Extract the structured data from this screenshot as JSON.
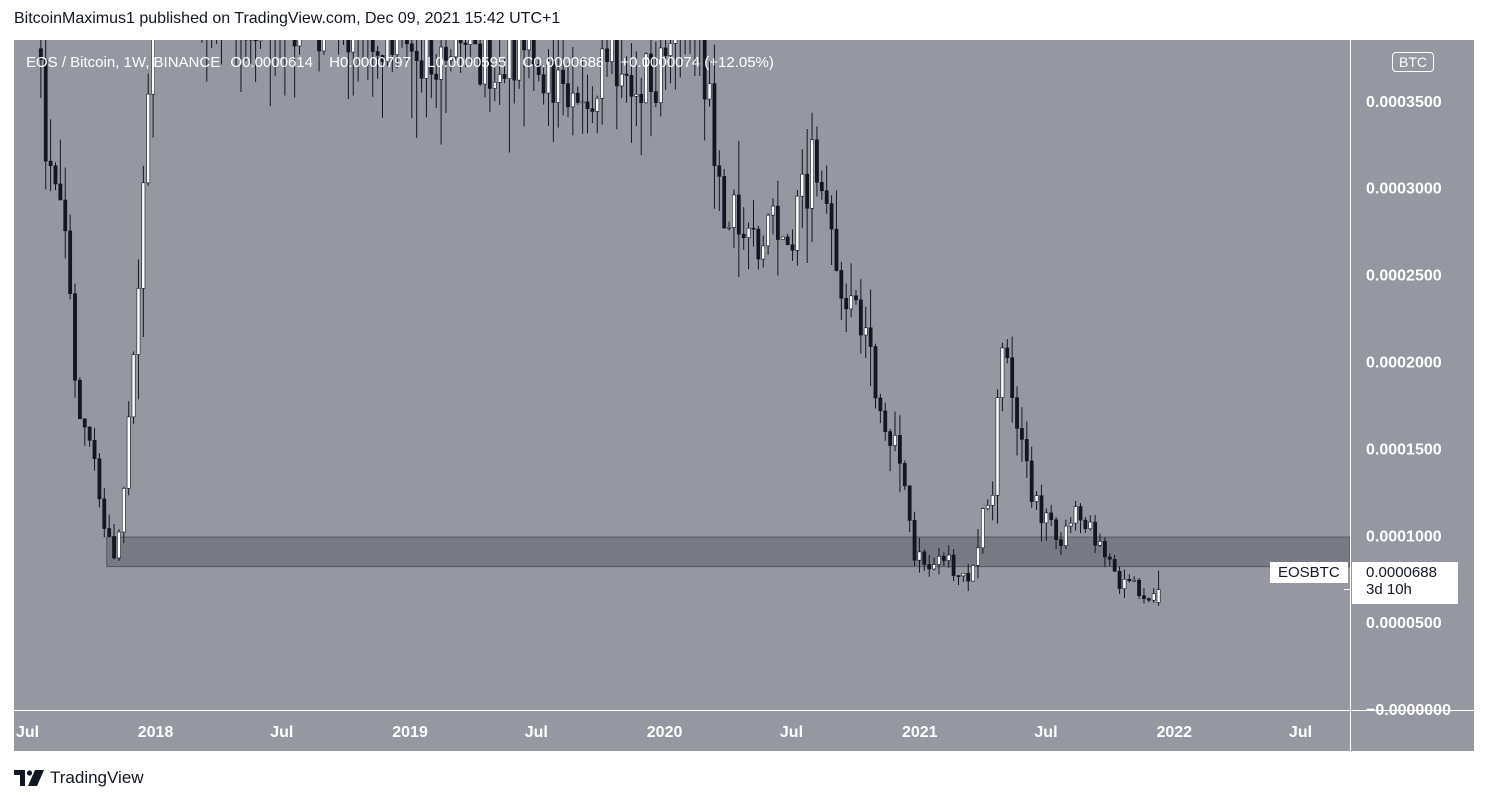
{
  "header": {
    "publisher_line": "BitcoinMaximus1 published on TradingView.com, Dec 09, 2021 15:42 UTC+1"
  },
  "legend": {
    "symbol": "EOS / Bitcoin, 1W, BINANCE",
    "o_label": "O",
    "o_value": "0.0000614",
    "h_label": "H",
    "h_value": "0.0000797",
    "l_label": "L",
    "l_value": "0.0000595",
    "c_label": "C",
    "c_value": "0.0000688",
    "change": "+0.0000074 (+12.05%)"
  },
  "currency_badge": "BTC",
  "last_price": {
    "ticker": "EOSBTC",
    "value": "0.0000688",
    "countdown": "3d 10h"
  },
  "footer": {
    "brand": "TradingView"
  },
  "colors": {
    "background": "#9598a1",
    "candle_up": "#ffffff",
    "candle_down": "#131722",
    "support_zone": "#6f727a",
    "text": "#ffffff"
  },
  "chart_data": {
    "type": "candlestick",
    "title": "EOS / Bitcoin, 1W, BINANCE",
    "xlabel": "",
    "ylabel": "",
    "ylim": [
      -5e-07,
      0.000385
    ],
    "x_tick_labels": [
      "Jul",
      "2018",
      "Jul",
      "2019",
      "Jul",
      "2020",
      "Jul",
      "2021",
      "Jul",
      "2022",
      "Jul"
    ],
    "x_tick_dates": [
      "2017-07-01",
      "2018-01-01",
      "2018-07-01",
      "2019-01-01",
      "2019-07-01",
      "2020-01-01",
      "2020-07-01",
      "2021-01-01",
      "2021-07-01",
      "2022-01-01",
      "2022-07-01"
    ],
    "y_tick_labels": [
      "0.0003500",
      "0.0003000",
      "0.0002500",
      "0.0002000",
      "0.0001500",
      "0.0001000",
      "0.0000500",
      "−0.0000000"
    ],
    "y_tick_values": [
      0.00035,
      0.0003,
      0.00025,
      0.0002,
      0.00015,
      0.0001,
      5e-05,
      0
    ],
    "support_zone": {
      "from": 8.2e-05,
      "to": 9.9e-05,
      "start": "2017-10-23"
    },
    "grid": false,
    "legend_position": "top-left",
    "series": [
      {
        "name": "EOSBTC",
        "keypoints": [
          {
            "date": "2017-07-24",
            "close": 0.00038
          },
          {
            "date": "2017-07-31",
            "close": 0.000335
          },
          {
            "date": "2017-08-14",
            "close": 0.00031
          },
          {
            "date": "2017-08-28",
            "close": 0.00027
          },
          {
            "date": "2017-09-11",
            "close": 0.000185
          },
          {
            "date": "2017-09-25",
            "close": 0.000165
          },
          {
            "date": "2017-10-09",
            "close": 0.000145
          },
          {
            "date": "2017-10-23",
            "close": 0.00011
          },
          {
            "date": "2017-11-06",
            "close": 9e-05
          },
          {
            "date": "2017-11-20",
            "close": 0.000125
          },
          {
            "date": "2017-12-04",
            "close": 0.00021
          },
          {
            "date": "2017-12-18",
            "close": 0.0003
          },
          {
            "date": "2018-01-01",
            "close": 0.00042
          },
          {
            "date": "2019-07-22",
            "close": 0.00037
          },
          {
            "date": "2019-09-02",
            "close": 0.00034
          },
          {
            "date": "2019-10-14",
            "close": 0.000385
          },
          {
            "date": "2019-11-25",
            "close": 0.000345
          },
          {
            "date": "2020-01-06",
            "close": 0.00038
          },
          {
            "date": "2020-02-17",
            "close": 0.000385
          },
          {
            "date": "2020-03-09",
            "close": 0.000345
          },
          {
            "date": "2020-03-23",
            "close": 0.00029
          },
          {
            "date": "2020-04-13",
            "close": 0.00028
          },
          {
            "date": "2020-05-04",
            "close": 0.000285
          },
          {
            "date": "2020-05-25",
            "close": 0.000265
          },
          {
            "date": "2020-06-15",
            "close": 0.000285
          },
          {
            "date": "2020-07-06",
            "close": 0.00027
          },
          {
            "date": "2020-08-03",
            "close": 0.000315
          },
          {
            "date": "2020-08-24",
            "close": 0.000285
          },
          {
            "date": "2020-09-07",
            "close": 0.000255
          },
          {
            "date": "2020-10-05",
            "close": 0.00023
          },
          {
            "date": "2020-10-26",
            "close": 0.0002
          },
          {
            "date": "2020-11-16",
            "close": 0.000165
          },
          {
            "date": "2020-12-07",
            "close": 0.000145
          },
          {
            "date": "2020-12-28",
            "close": 9e-05
          },
          {
            "date": "2021-01-18",
            "close": 8.2e-05
          },
          {
            "date": "2021-02-08",
            "close": 9e-05
          },
          {
            "date": "2021-03-01",
            "close": 7.5e-05
          },
          {
            "date": "2021-03-22",
            "close": 8e-05
          },
          {
            "date": "2021-04-05",
            "close": 0.000115
          },
          {
            "date": "2021-04-19",
            "close": 0.000125
          },
          {
            "date": "2021-05-03",
            "close": 0.00022
          },
          {
            "date": "2021-05-17",
            "close": 0.00017
          },
          {
            "date": "2021-05-31",
            "close": 0.00015
          },
          {
            "date": "2021-06-14",
            "close": 0.00012
          },
          {
            "date": "2021-07-05",
            "close": 0.00011
          },
          {
            "date": "2021-07-26",
            "close": 0.0001
          },
          {
            "date": "2021-08-16",
            "close": 0.000115
          },
          {
            "date": "2021-09-06",
            "close": 0.000105
          },
          {
            "date": "2021-09-27",
            "close": 9e-05
          },
          {
            "date": "2021-10-18",
            "close": 7.2e-05
          },
          {
            "date": "2021-11-08",
            "close": 7e-05
          },
          {
            "date": "2021-11-29",
            "close": 6.1e-05
          },
          {
            "date": "2021-12-06",
            "close": 6.88e-05
          }
        ],
        "last_candle": {
          "date": "2021-12-06",
          "open": 6.14e-05,
          "high": 7.97e-05,
          "low": 5.95e-05,
          "close": 6.88e-05
        }
      }
    ]
  }
}
